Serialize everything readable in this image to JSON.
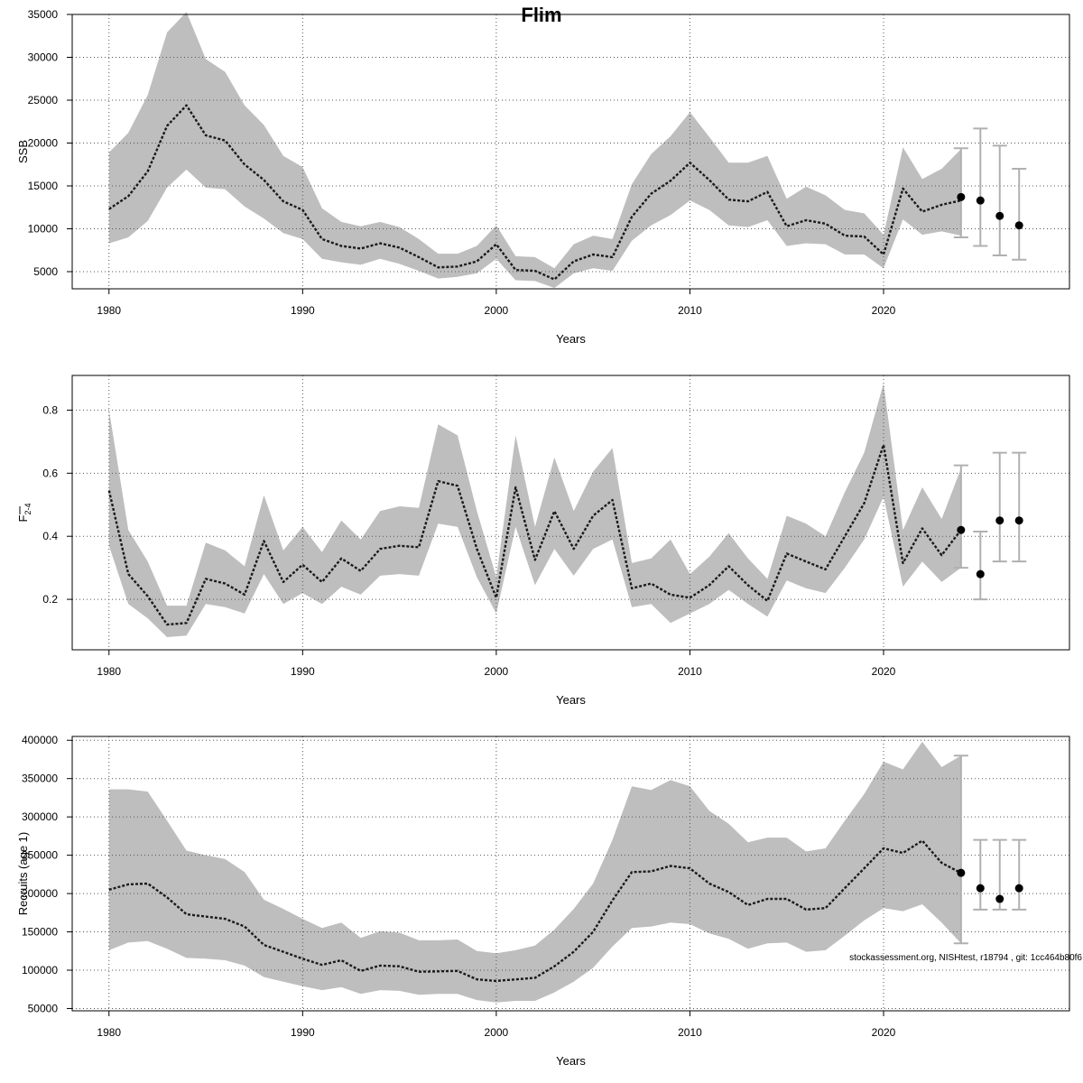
{
  "figure": {
    "title": "Flim",
    "credit": "stockassessment.org, NISHtest, r18794 , git: 1cc464b80f6"
  },
  "colors": {
    "band": "#bebebe",
    "line": "#1a1a1a",
    "grid": "#555555",
    "errorbar": "#b0b0b0",
    "point": "#000000"
  },
  "chart_data": [
    {
      "type": "line",
      "panel": "ssb",
      "xlabel": "Years",
      "ylabel": "SSB",
      "ylabel_sub": "",
      "xlim": [
        1978.1,
        2029.6
      ],
      "ylim": [
        3000,
        35000
      ],
      "xticks": [
        1980,
        1990,
        2000,
        2010,
        2020
      ],
      "yticks": [
        5000,
        10000,
        15000,
        20000,
        25000,
        30000,
        35000
      ],
      "grid": true,
      "x": [
        1980,
        1981,
        1982,
        1983,
        1984,
        1985,
        1986,
        1987,
        1988,
        1989,
        1990,
        1991,
        1992,
        1993,
        1994,
        1995,
        1996,
        1997,
        1998,
        1999,
        2000,
        2001,
        2002,
        2003,
        2004,
        2005,
        2006,
        2007,
        2008,
        2009,
        2010,
        2011,
        2012,
        2013,
        2014,
        2015,
        2016,
        2017,
        2018,
        2019,
        2020,
        2021,
        2022,
        2023,
        2024
      ],
      "estimate": [
        12300,
        13800,
        16700,
        22000,
        24400,
        20900,
        20300,
        17500,
        15700,
        13200,
        12200,
        8800,
        8000,
        7700,
        8300,
        7800,
        6700,
        5500,
        5600,
        6200,
        8200,
        5200,
        5100,
        4100,
        6200,
        7000,
        6700,
        11400,
        14100,
        15600,
        17700,
        15700,
        13400,
        13200,
        14300,
        10300,
        11000,
        10600,
        9200,
        9100,
        7000,
        14700,
        12000,
        12800,
        13300
      ],
      "lower": [
        8300,
        9000,
        10900,
        14800,
        16900,
        14800,
        14600,
        12600,
        11200,
        9500,
        8800,
        6500,
        6100,
        5800,
        6500,
        5900,
        5100,
        4200,
        4400,
        4800,
        6500,
        4000,
        3900,
        3100,
        4800,
        5400,
        5100,
        8600,
        10400,
        11600,
        13300,
        12200,
        10400,
        10200,
        11000,
        8000,
        8300,
        8200,
        7000,
        7000,
        5400,
        11100,
        9300,
        9700,
        9200
      ],
      "upper": [
        18900,
        21200,
        25600,
        32900,
        35300,
        29800,
        28300,
        24400,
        22100,
        18500,
        17200,
        12400,
        10800,
        10300,
        10800,
        10200,
        8800,
        7100,
        7100,
        8000,
        10400,
        6800,
        6700,
        5400,
        8200,
        9200,
        8800,
        15200,
        18700,
        20800,
        23600,
        20700,
        17700,
        17700,
        18500,
        13500,
        14900,
        13900,
        12200,
        11800,
        9300,
        19500,
        15800,
        17000,
        19300
      ],
      "forecast": {
        "x": [
          2024,
          2025,
          2026,
          2027
        ],
        "median": [
          13700,
          13300,
          11500,
          10400
        ],
        "low": [
          9000,
          8000,
          6900,
          6400
        ],
        "high": [
          19400,
          21700,
          19700,
          17000
        ]
      }
    },
    {
      "type": "line",
      "panel": "fbar",
      "xlabel": "Years",
      "ylabel": "F",
      "ylabel_sub": "2-4",
      "xlim": [
        1978.1,
        2029.6
      ],
      "ylim": [
        0.04,
        0.91
      ],
      "xticks": [
        1980,
        1990,
        2000,
        2010,
        2020
      ],
      "yticks": [
        0.2,
        0.4,
        0.6,
        0.8
      ],
      "grid": true,
      "x": [
        1980,
        1981,
        1982,
        1983,
        1984,
        1985,
        1986,
        1987,
        1988,
        1989,
        1990,
        1991,
        1992,
        1993,
        1994,
        1995,
        1996,
        1997,
        1998,
        1999,
        2000,
        2001,
        2002,
        2003,
        2004,
        2005,
        2006,
        2007,
        2008,
        2009,
        2010,
        2011,
        2012,
        2013,
        2014,
        2015,
        2016,
        2017,
        2018,
        2019,
        2020,
        2021,
        2022,
        2023,
        2024
      ],
      "estimate": [
        0.545,
        0.28,
        0.21,
        0.12,
        0.125,
        0.265,
        0.25,
        0.215,
        0.385,
        0.255,
        0.31,
        0.255,
        0.33,
        0.29,
        0.36,
        0.37,
        0.365,
        0.575,
        0.56,
        0.36,
        0.205,
        0.555,
        0.325,
        0.48,
        0.36,
        0.465,
        0.515,
        0.235,
        0.25,
        0.215,
        0.205,
        0.245,
        0.305,
        0.245,
        0.195,
        0.345,
        0.32,
        0.295,
        0.4,
        0.505,
        0.69,
        0.315,
        0.425,
        0.34,
        0.42
      ],
      "lower": [
        0.37,
        0.185,
        0.14,
        0.08,
        0.085,
        0.185,
        0.175,
        0.155,
        0.28,
        0.185,
        0.22,
        0.185,
        0.24,
        0.215,
        0.275,
        0.28,
        0.275,
        0.44,
        0.43,
        0.27,
        0.155,
        0.43,
        0.245,
        0.36,
        0.275,
        0.36,
        0.39,
        0.175,
        0.185,
        0.125,
        0.155,
        0.185,
        0.23,
        0.185,
        0.145,
        0.26,
        0.235,
        0.22,
        0.3,
        0.39,
        0.525,
        0.24,
        0.32,
        0.255,
        0.3
      ],
      "upper": [
        0.8,
        0.42,
        0.32,
        0.18,
        0.18,
        0.38,
        0.355,
        0.305,
        0.53,
        0.355,
        0.43,
        0.35,
        0.45,
        0.39,
        0.48,
        0.495,
        0.49,
        0.755,
        0.72,
        0.48,
        0.27,
        0.72,
        0.43,
        0.65,
        0.48,
        0.605,
        0.68,
        0.315,
        0.33,
        0.39,
        0.28,
        0.335,
        0.41,
        0.33,
        0.265,
        0.465,
        0.44,
        0.4,
        0.54,
        0.665,
        0.885,
        0.42,
        0.555,
        0.455,
        0.615
      ],
      "forecast": {
        "x": [
          2024,
          2025,
          2026,
          2027
        ],
        "median": [
          0.42,
          0.28,
          0.45,
          0.45
        ],
        "low": [
          0.3,
          0.2,
          0.32,
          0.32
        ],
        "high": [
          0.625,
          0.415,
          0.665,
          0.665
        ]
      }
    },
    {
      "type": "line",
      "panel": "recruits",
      "xlabel": "Years",
      "ylabel": "Recruits (age 1)",
      "ylabel_sub": "",
      "xlim": [
        1978.1,
        2029.6
      ],
      "ylim": [
        47000,
        405000
      ],
      "xticks": [
        1980,
        1990,
        2000,
        2010,
        2020
      ],
      "yticks": [
        50000,
        100000,
        150000,
        200000,
        250000,
        300000,
        350000,
        400000
      ],
      "grid": true,
      "x": [
        1980,
        1981,
        1982,
        1983,
        1984,
        1985,
        1986,
        1987,
        1988,
        1989,
        1990,
        1991,
        1992,
        1993,
        1994,
        1995,
        1996,
        1997,
        1998,
        1999,
        2000,
        2001,
        2002,
        2003,
        2004,
        2005,
        2006,
        2007,
        2008,
        2009,
        2010,
        2011,
        2012,
        2013,
        2014,
        2015,
        2016,
        2017,
        2018,
        2019,
        2020,
        2021,
        2022,
        2023,
        2024
      ],
      "estimate": [
        205000,
        212000,
        213000,
        195000,
        173000,
        170000,
        167000,
        157000,
        133000,
        124000,
        115000,
        107000,
        113000,
        99000,
        106000,
        105000,
        98000,
        98500,
        99000,
        88000,
        86000,
        88000,
        90000,
        105000,
        124000,
        150000,
        191000,
        228000,
        229000,
        236000,
        233000,
        213000,
        202000,
        185000,
        193000,
        193000,
        179000,
        181000,
        207000,
        233000,
        259000,
        253000,
        269000,
        240000,
        227000
      ],
      "lower": [
        126000,
        136000,
        138000,
        128000,
        116000,
        115000,
        113000,
        106000,
        91000,
        85000,
        79000,
        74000,
        78000,
        69000,
        74000,
        73000,
        68000,
        69000,
        69000,
        61000,
        58000,
        60000,
        60000,
        71000,
        85000,
        103000,
        131000,
        155000,
        157000,
        162000,
        160000,
        148000,
        141000,
        128000,
        135000,
        136000,
        124000,
        126000,
        145000,
        165000,
        181000,
        177000,
        186000,
        162000,
        135000
      ],
      "upper": [
        336000,
        336000,
        333000,
        295000,
        256000,
        250000,
        245000,
        228000,
        192000,
        180000,
        167000,
        155000,
        162000,
        142000,
        151000,
        149000,
        139000,
        139000,
        140000,
        125000,
        122000,
        126000,
        132000,
        153000,
        180000,
        213000,
        270000,
        340000,
        335000,
        348000,
        340000,
        308000,
        291000,
        267000,
        273000,
        273000,
        255000,
        259000,
        295000,
        330000,
        372000,
        362000,
        398000,
        365000,
        380000
      ],
      "forecast": {
        "x": [
          2024,
          2025,
          2026,
          2027
        ],
        "median": [
          227000,
          207000,
          193000,
          207000
        ],
        "low": [
          135000,
          179000,
          179000,
          179000
        ],
        "high": [
          380000,
          270000,
          270000,
          270000
        ]
      }
    }
  ]
}
